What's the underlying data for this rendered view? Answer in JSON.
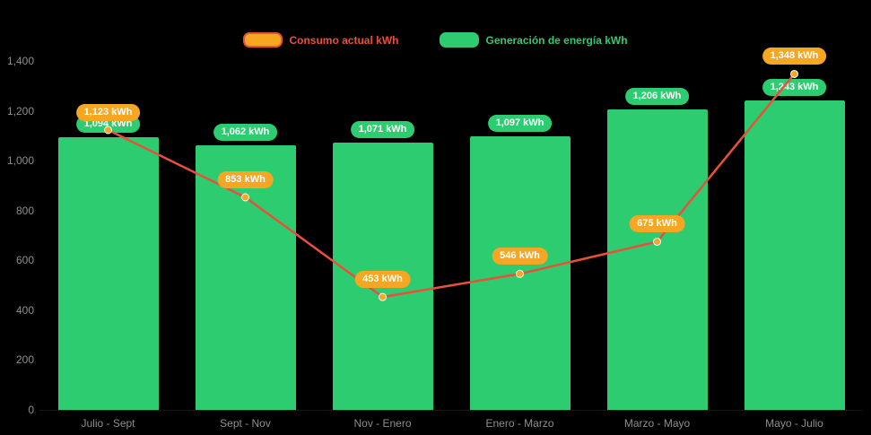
{
  "legend": [
    {
      "label": "Consumo actual kWh",
      "swatch_fill": "#f5a623",
      "swatch_border": "#e8503a",
      "text_color": "#e8503a"
    },
    {
      "label": "Generación de energía kWh",
      "swatch_fill": "#2ecc71",
      "swatch_border": "#2ecc71",
      "text_color": "#2ecc71"
    }
  ],
  "colors": {
    "bar": "#2ecc71",
    "line": "#e8503a",
    "line_marker": "#f5a623",
    "bar_badge": "#2ecc71",
    "line_badge": "#f5a623",
    "axis_text": "#8e8e8e",
    "background": "#000000"
  },
  "chart_data": {
    "type": "bar",
    "subtype": "combo-bar-line",
    "title": "",
    "xlabel": "",
    "ylabel": "",
    "categories": [
      "Julio - Sept",
      "Sept - Nov",
      "Nov - Enero",
      "Enero - Marzo",
      "Marzo - Mayo",
      "Mayo - Julio"
    ],
    "series": [
      {
        "name": "Generación de energía kWh",
        "type": "bar",
        "color": "#2ecc71",
        "values": [
          1094,
          1062,
          1071,
          1097,
          1206,
          1243
        ],
        "labels": [
          "1,094 kWh",
          "1,062 kWh",
          "1,071 kWh",
          "1,097 kWh",
          "1,206 kWh",
          "1,243 kWh"
        ]
      },
      {
        "name": "Consumo actual kWh",
        "type": "line",
        "color": "#e8503a",
        "marker_color": "#f5a623",
        "values": [
          1123,
          853,
          453,
          546,
          675,
          1348
        ],
        "labels": [
          "1,123 kWh",
          "853 kWh",
          "453 kWh",
          "546 kWh",
          "675 kWh",
          "1,348 kWh"
        ]
      }
    ],
    "ylim": [
      0,
      1400
    ],
    "yticks": [
      0,
      200,
      400,
      600,
      800,
      1000,
      1200,
      1400
    ],
    "ytick_labels": [
      "0",
      "200",
      "400",
      "600",
      "800",
      "1,000",
      "1,200",
      "1,400"
    ],
    "grid": false,
    "legend_position": "top-center"
  }
}
